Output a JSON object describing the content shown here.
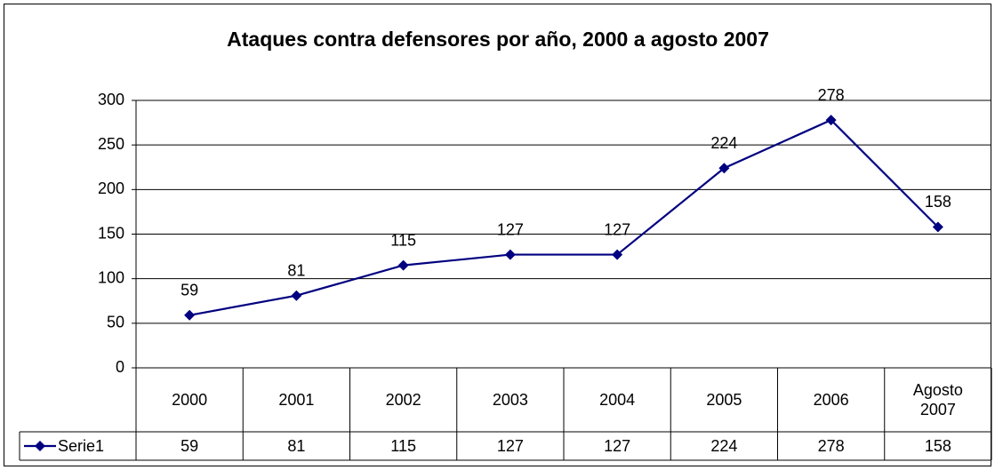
{
  "chart_data": {
    "type": "line",
    "title": "Ataques  contra defensores por año, 2000 a agosto 2007",
    "categories": [
      "2000",
      "2001",
      "2002",
      "2003",
      "2004",
      "2005",
      "2006",
      "Agosto 2007"
    ],
    "series": [
      {
        "name": "Serie1",
        "color": "#000080",
        "values": [
          59,
          81,
          115,
          127,
          127,
          224,
          278,
          158
        ]
      }
    ],
    "ylim": [
      0,
      300
    ],
    "yticks": [
      0,
      50,
      100,
      150,
      200,
      250,
      300
    ],
    "grid": true,
    "data_table": true
  }
}
